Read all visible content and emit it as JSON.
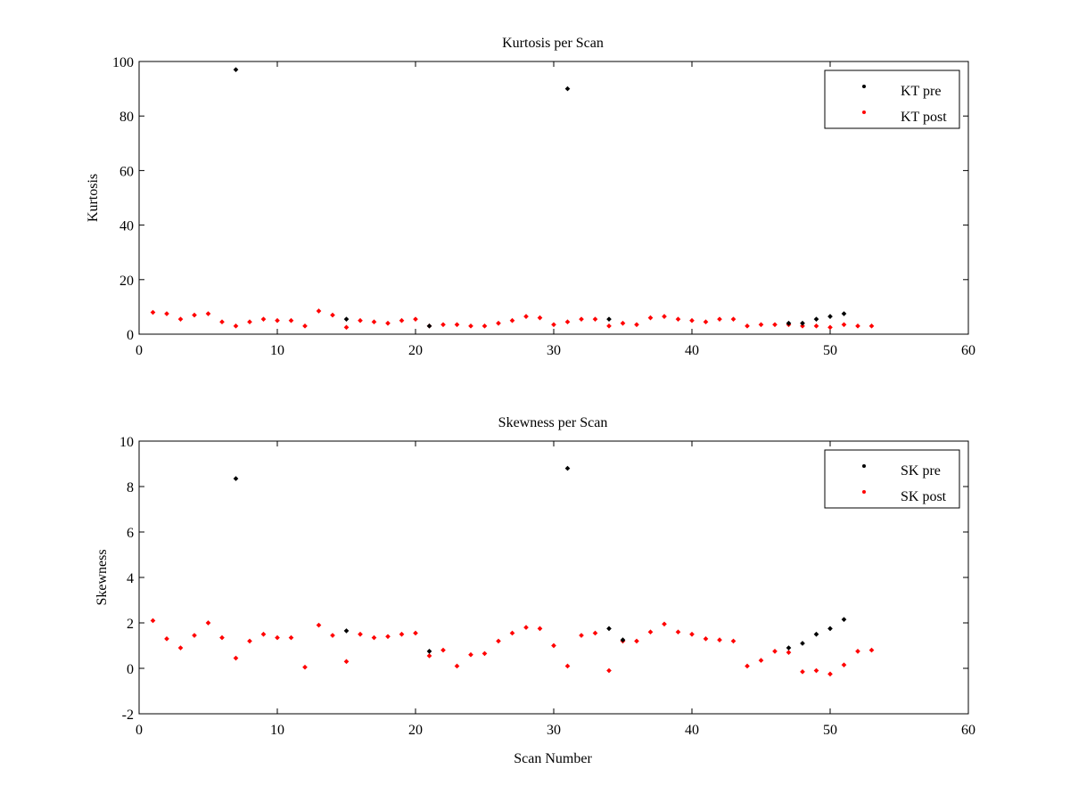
{
  "chart_data": [
    {
      "type": "scatter",
      "title": "Kurtosis per Scan",
      "xlabel": "",
      "ylabel": "Kurtosis",
      "xlim": [
        0,
        60
      ],
      "ylim": [
        0,
        100
      ],
      "xticks": [
        0,
        10,
        20,
        30,
        40,
        50,
        60
      ],
      "yticks": [
        0,
        20,
        40,
        60,
        80,
        100
      ],
      "grid": false,
      "legend_position": "top-right",
      "series": [
        {
          "name": "KT pre",
          "color": "#000000",
          "marker": "dot",
          "points": [
            [
              7,
              97
            ],
            [
              15,
              5.5
            ],
            [
              21,
              3
            ],
            [
              31,
              90
            ],
            [
              34,
              5.5
            ],
            [
              47,
              4
            ],
            [
              48,
              4
            ],
            [
              49,
              5.5
            ],
            [
              50,
              6.5
            ],
            [
              51,
              7.5
            ]
          ]
        },
        {
          "name": "KT post",
          "color": "#ff0000",
          "marker": "dot",
          "points": [
            [
              1,
              8
            ],
            [
              2,
              7.5
            ],
            [
              3,
              5.5
            ],
            [
              4,
              7
            ],
            [
              5,
              7.5
            ],
            [
              6,
              4.5
            ],
            [
              7,
              3
            ],
            [
              8,
              4.5
            ],
            [
              9,
              5.5
            ],
            [
              10,
              5
            ],
            [
              11,
              5
            ],
            [
              12,
              3
            ],
            [
              13,
              8.5
            ],
            [
              14,
              7
            ],
            [
              15,
              2.5
            ],
            [
              16,
              5
            ],
            [
              17,
              4.5
            ],
            [
              18,
              4
            ],
            [
              19,
              5
            ],
            [
              20,
              5.5
            ],
            [
              21,
              3
            ],
            [
              22,
              3.5
            ],
            [
              23,
              3.5
            ],
            [
              24,
              3
            ],
            [
              25,
              3
            ],
            [
              26,
              4
            ],
            [
              27,
              5
            ],
            [
              28,
              6.5
            ],
            [
              29,
              6
            ],
            [
              30,
              3.5
            ],
            [
              31,
              4.5
            ],
            [
              32,
              5.5
            ],
            [
              33,
              5.5
            ],
            [
              34,
              3
            ],
            [
              35,
              4
            ],
            [
              36,
              3.5
            ],
            [
              37,
              6
            ],
            [
              38,
              6.5
            ],
            [
              39,
              5.5
            ],
            [
              40,
              5
            ],
            [
              41,
              4.5
            ],
            [
              42,
              5.5
            ],
            [
              43,
              5.5
            ],
            [
              44,
              3
            ],
            [
              45,
              3.5
            ],
            [
              46,
              3.5
            ],
            [
              47,
              3.5
            ],
            [
              48,
              3
            ],
            [
              49,
              3
            ],
            [
              50,
              2.5
            ],
            [
              51,
              3.5
            ],
            [
              52,
              3
            ],
            [
              53,
              3
            ]
          ]
        }
      ]
    },
    {
      "type": "scatter",
      "title": "Skewness per Scan",
      "xlabel": "Scan Number",
      "ylabel": "Skewness",
      "xlim": [
        0,
        60
      ],
      "ylim": [
        -2,
        10
      ],
      "xticks": [
        0,
        10,
        20,
        30,
        40,
        50,
        60
      ],
      "yticks": [
        -2,
        0,
        2,
        4,
        6,
        8,
        10
      ],
      "grid": false,
      "legend_position": "top-right",
      "series": [
        {
          "name": "SK pre",
          "color": "#000000",
          "marker": "dot",
          "points": [
            [
              7,
              8.35
            ],
            [
              15,
              1.65
            ],
            [
              21,
              0.75
            ],
            [
              31,
              8.8
            ],
            [
              34,
              1.75
            ],
            [
              35,
              1.25
            ],
            [
              47,
              0.9
            ],
            [
              48,
              1.1
            ],
            [
              49,
              1.5
            ],
            [
              50,
              1.75
            ],
            [
              51,
              2.15
            ]
          ]
        },
        {
          "name": "SK post",
          "color": "#ff0000",
          "marker": "dot",
          "points": [
            [
              1,
              2.1
            ],
            [
              2,
              1.3
            ],
            [
              3,
              0.9
            ],
            [
              4,
              1.45
            ],
            [
              5,
              2.0
            ],
            [
              6,
              1.35
            ],
            [
              7,
              0.45
            ],
            [
              8,
              1.2
            ],
            [
              9,
              1.5
            ],
            [
              10,
              1.35
            ],
            [
              11,
              1.35
            ],
            [
              12,
              0.05
            ],
            [
              13,
              1.9
            ],
            [
              14,
              1.45
            ],
            [
              15,
              0.3
            ],
            [
              16,
              1.5
            ],
            [
              17,
              1.35
            ],
            [
              18,
              1.4
            ],
            [
              19,
              1.5
            ],
            [
              20,
              1.55
            ],
            [
              21,
              0.55
            ],
            [
              22,
              0.8
            ],
            [
              23,
              0.1
            ],
            [
              24,
              0.6
            ],
            [
              25,
              0.65
            ],
            [
              26,
              1.2
            ],
            [
              27,
              1.55
            ],
            [
              28,
              1.8
            ],
            [
              29,
              1.75
            ],
            [
              30,
              1.0
            ],
            [
              31,
              0.1
            ],
            [
              32,
              1.45
            ],
            [
              33,
              1.55
            ],
            [
              34,
              -0.1
            ],
            [
              35,
              1.2
            ],
            [
              36,
              1.2
            ],
            [
              37,
              1.6
            ],
            [
              38,
              1.95
            ],
            [
              39,
              1.6
            ],
            [
              40,
              1.5
            ],
            [
              41,
              1.3
            ],
            [
              42,
              1.25
            ],
            [
              43,
              1.2
            ],
            [
              44,
              0.1
            ],
            [
              45,
              0.35
            ],
            [
              46,
              0.75
            ],
            [
              47,
              0.7
            ],
            [
              48,
              -0.15
            ],
            [
              49,
              -0.1
            ],
            [
              50,
              -0.25
            ],
            [
              51,
              0.15
            ],
            [
              52,
              0.75
            ],
            [
              53,
              0.8
            ]
          ]
        }
      ]
    }
  ]
}
